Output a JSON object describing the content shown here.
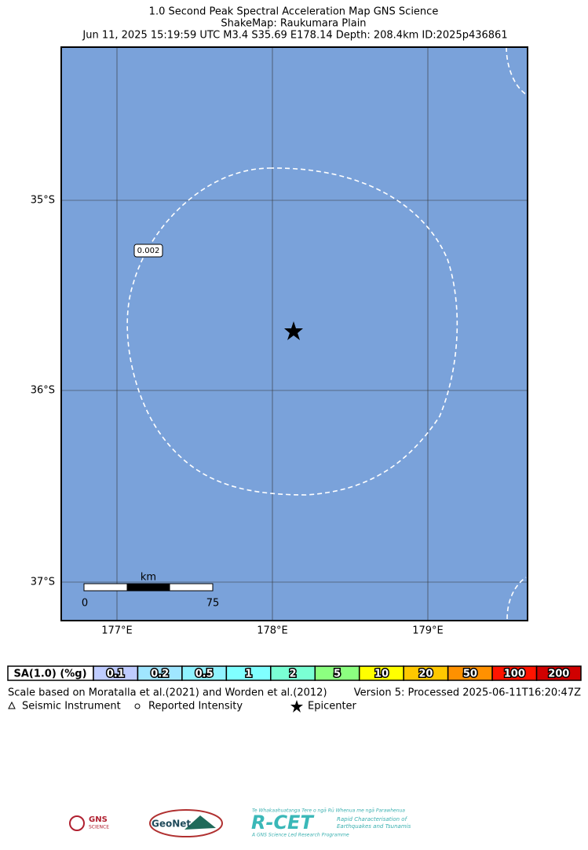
{
  "header": {
    "line1": "1.0 Second Peak Spectral Acceleration Map GNS Science",
    "line2": "ShakeMap: Raukumara Plain",
    "line3": "Jun 11, 2025 15:19:59 UTC M3.4 S35.69 E178.14 Depth: 208.4km ID:2025p436861"
  },
  "map": {
    "lat_labels": [
      "35°S",
      "36°S",
      "37°S"
    ],
    "lon_labels": [
      "177°E",
      "178°E",
      "179°E"
    ],
    "contour_label": "0.002",
    "scale_unit": "km",
    "scale_start": "0",
    "scale_end": "75"
  },
  "legend": {
    "title": "SA(1.0) (%g)",
    "levels": [
      {
        "label": "0.1",
        "color": "#bfccff"
      },
      {
        "label": "0.2",
        "color": "#a0e6ff"
      },
      {
        "label": "0.5",
        "color": "#90f2ff"
      },
      {
        "label": "1",
        "color": "#80ffff"
      },
      {
        "label": "2",
        "color": "#7affd4"
      },
      {
        "label": "5",
        "color": "#8cff80"
      },
      {
        "label": "10",
        "color": "#ffff00"
      },
      {
        "label": "20",
        "color": "#ffc800"
      },
      {
        "label": "50",
        "color": "#ff9100"
      },
      {
        "label": "100",
        "color": "#ff1400"
      },
      {
        "label": "200",
        "color": "#d00000"
      }
    ]
  },
  "footer": {
    "scale_note": "Scale based on Moratalla et al.(2021) and Worden et al.(2012)",
    "version": "Version 5: Processed 2025-06-11T16:20:47Z",
    "seismic": "Seismic Instrument",
    "reported": "Reported Intensity",
    "epicenter": "Epicenter"
  },
  "logos": {
    "gns": "GNS",
    "gns_sub": "SCIENCE",
    "geonet": "GeoNet",
    "rcet_top": "Te Whakaahuatanga Tere o ngā Rū Whenua me ngā Parawhenua",
    "rcet": "R-CET",
    "rcet_desc1": "Rapid Characterisation of",
    "rcet_desc2": "Earthquakes and Tsunamis",
    "rcet_bottom": "A GNS Science Led Research Programme"
  }
}
